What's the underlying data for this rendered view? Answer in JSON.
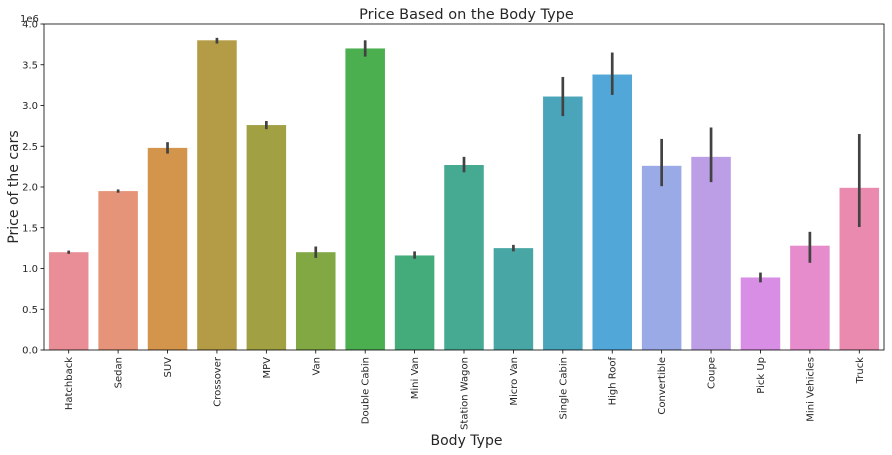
{
  "chart_data": {
    "type": "bar",
    "title": "Price Based on the Body Type",
    "xlabel": "Body Type",
    "ylabel": "Price of the cars",
    "y_offset_label": "1e6",
    "ylim": [
      0,
      4.0
    ],
    "y_ticks": [
      "0.0",
      "0.5",
      "1.0",
      "1.5",
      "2.0",
      "2.5",
      "3.0",
      "3.5",
      "4.0"
    ],
    "grid": false,
    "categories": [
      "Hatchback",
      "Sedan",
      "SUV",
      "Crossover",
      "MPV",
      "Van",
      "Double Cabin",
      "Mini Van",
      "Station Wagon",
      "Micro Van",
      "Single Cabin",
      "High Roof",
      "Convertible",
      "Coupe",
      "Pick Up",
      "Mini Vehicles",
      "Truck"
    ],
    "values": [
      1.2,
      1.95,
      2.48,
      3.8,
      2.76,
      1.2,
      3.7,
      1.16,
      2.27,
      1.25,
      3.11,
      3.38,
      2.26,
      2.37,
      0.89,
      1.28,
      1.99
    ],
    "error_low": [
      1.18,
      1.93,
      2.41,
      3.76,
      2.71,
      1.13,
      3.6,
      1.12,
      2.18,
      1.21,
      2.87,
      3.13,
      2.01,
      2.06,
      0.83,
      1.07,
      1.51
    ],
    "error_high": [
      1.22,
      1.97,
      2.55,
      3.83,
      2.81,
      1.27,
      3.8,
      1.21,
      2.37,
      1.29,
      3.35,
      3.65,
      2.59,
      2.73,
      0.95,
      1.45,
      2.65
    ],
    "colors": [
      "#e98e96",
      "#e69479",
      "#d2954b",
      "#b39c45",
      "#a1a143",
      "#82a843",
      "#4bae4f",
      "#44ab7a",
      "#46a992",
      "#48a6a4",
      "#4aa5bb",
      "#51a7d8",
      "#99aae7",
      "#bc9ee6",
      "#d98ee6",
      "#e68ccc",
      "#e98aae"
    ]
  }
}
